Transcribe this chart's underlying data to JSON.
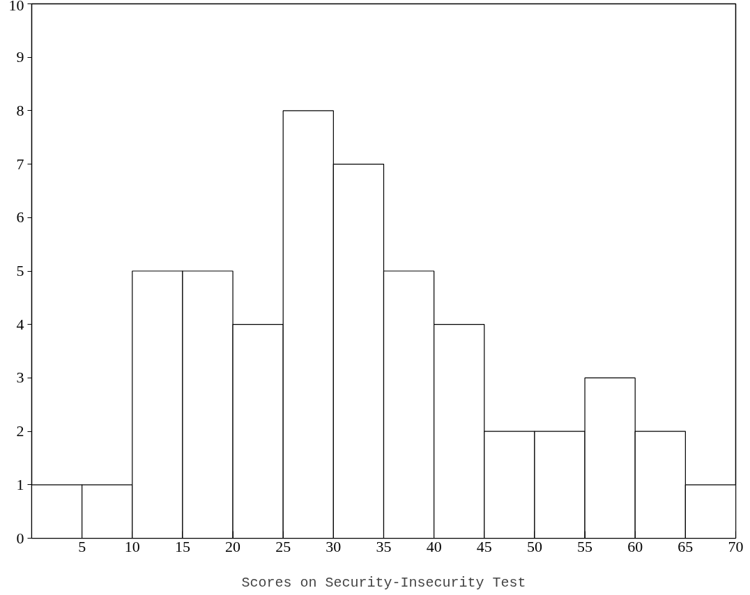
{
  "chart_data": {
    "type": "histogram",
    "xlabel": "Scores on Security-Insecurity Test",
    "bins": [
      0,
      5,
      10,
      15,
      20,
      25,
      30,
      35,
      40,
      45,
      50,
      55,
      60,
      65,
      70
    ],
    "values": [
      1,
      1,
      5,
      5,
      4,
      8,
      7,
      5,
      4,
      2,
      2,
      3,
      2,
      1
    ],
    "color": "#ffffff",
    "xlim": [
      0,
      70
    ],
    "xticks": [
      5,
      10,
      15,
      20,
      25,
      30,
      35,
      40,
      45,
      50,
      55,
      60,
      65,
      70
    ],
    "ylim": [
      0,
      10
    ],
    "yticks": [
      0,
      1,
      2,
      3,
      4,
      5,
      6,
      7,
      8,
      9,
      10
    ],
    "grid": false
  }
}
